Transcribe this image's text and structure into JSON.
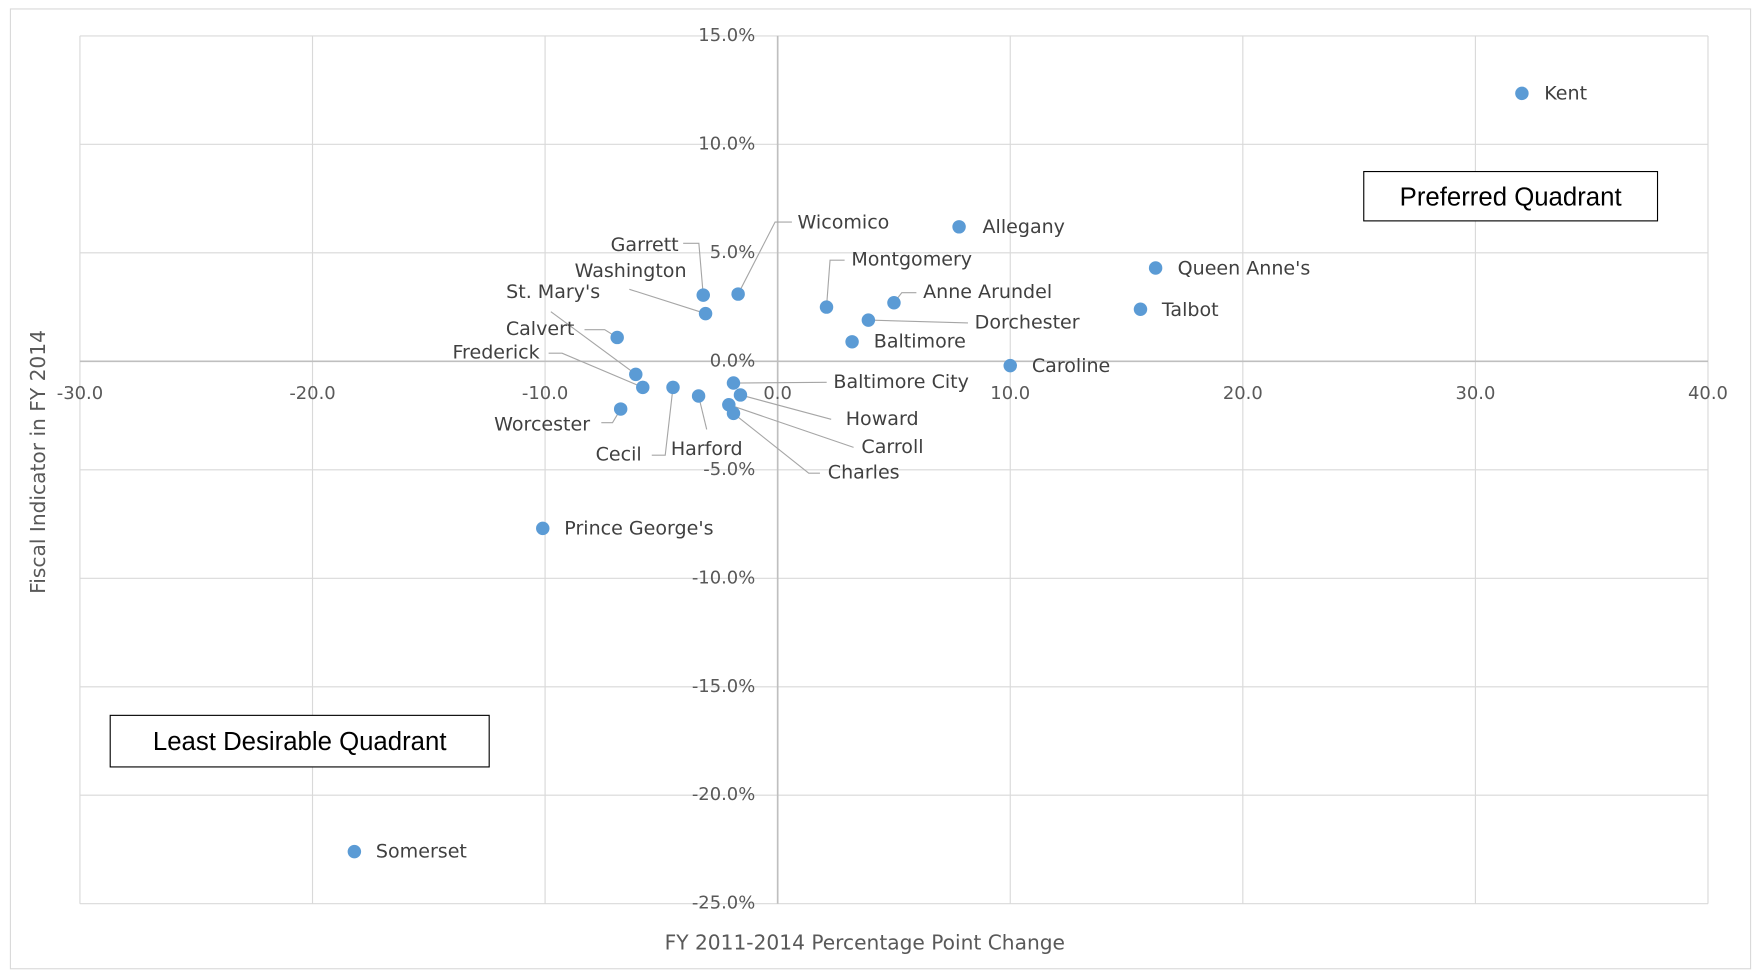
{
  "chart_data": {
    "type": "scatter",
    "x_label": "FY 2011-2014 Percentage Point Change",
    "y_label": "Fiscal Indicator in FY 2014",
    "annotations": [
      "Preferred Quadrant",
      "Least Desirable Quadrant"
    ],
    "color": "#5b9bd5",
    "grid": true,
    "xlim": [
      -30,
      40
    ],
    "ylim": [
      -25,
      15
    ],
    "xticks": [
      {
        "value": -30,
        "label": "-30.0"
      },
      {
        "value": -20,
        "label": "-20.0"
      },
      {
        "value": -10,
        "label": "-10.0"
      },
      {
        "value": 0,
        "label": "0.0"
      },
      {
        "value": 10,
        "label": "10.0"
      },
      {
        "value": 20,
        "label": "20.0"
      },
      {
        "value": 30,
        "label": "30.0"
      },
      {
        "value": 40,
        "label": "40.0"
      }
    ],
    "yticks": [
      {
        "value": 15,
        "label": "15.0%"
      },
      {
        "value": 10,
        "label": "10.0%"
      },
      {
        "value": 5,
        "label": "5.0%"
      },
      {
        "value": 0,
        "label": "0.0%"
      },
      {
        "value": -5,
        "label": "-5.0%"
      },
      {
        "value": -10,
        "label": "-10.0%"
      },
      {
        "value": -15,
        "label": "-15.0%"
      },
      {
        "value": -20,
        "label": "-20.0%"
      },
      {
        "value": -25,
        "label": "-25.0%"
      }
    ],
    "labels": [
      "Kent",
      "Allegany",
      "Queen Anne's",
      "Talbot",
      "Wicomico",
      "Garrett",
      "Washington",
      "Montgomery",
      "Anne Arundel",
      "Dorchester",
      "Baltimore",
      "Caroline",
      "Calvert",
      "St. Mary's",
      "Frederick",
      "Worcester",
      "Cecil",
      "Harford",
      "Baltimore City",
      "Howard",
      "Carroll",
      "Charles",
      "Prince George's",
      "Somerset"
    ],
    "x": [
      32.0,
      7.8,
      16.25,
      15.6,
      -1.7,
      -3.2,
      -3.1,
      2.1,
      5.0,
      3.9,
      3.2,
      10.0,
      -6.9,
      -6.1,
      -5.8,
      -6.75,
      -4.5,
      -3.4,
      -1.9,
      -1.6,
      -2.1,
      -1.9,
      -10.1,
      -18.2
    ],
    "values": [
      12.35,
      6.2,
      4.3,
      2.4,
      3.1,
      3.05,
      2.2,
      2.5,
      2.7,
      1.9,
      0.9,
      -0.2,
      1.1,
      -0.6,
      -1.2,
      -2.2,
      -1.2,
      -1.6,
      -1.0,
      -1.55,
      -2.0,
      -2.4,
      -7.7,
      -22.6
    ]
  }
}
